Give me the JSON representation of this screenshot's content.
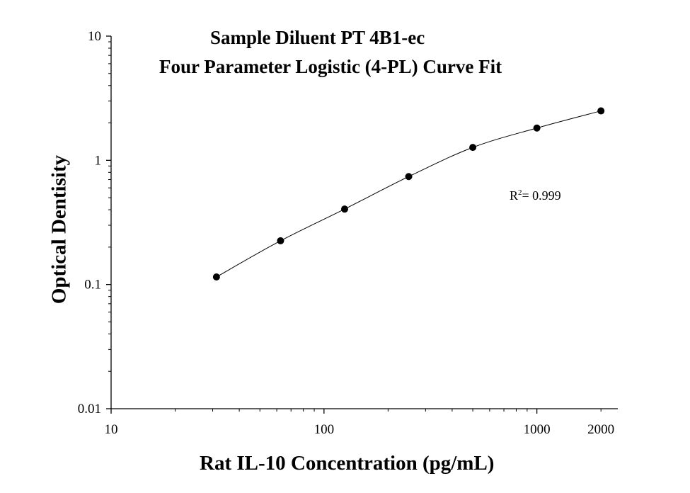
{
  "chart_data": {
    "type": "scatter",
    "title": "Sample Diluent PT 4B1-ec",
    "subtitle": "Four Parameter Logistic (4-PL) Curve Fit",
    "xlabel": "Rat IL-10 Concentration (pg/mL)",
    "ylabel": "Optical Dentisity",
    "x_scale": "log",
    "y_scale": "log",
    "xlim": [
      10,
      2400
    ],
    "ylim": [
      0.01,
      10
    ],
    "x_ticks": [
      "10",
      "100",
      "1000",
      "2000"
    ],
    "y_ticks": [
      "0.01",
      "0.1",
      "1",
      "10"
    ],
    "grid": false,
    "series": [
      {
        "x": [
          31.25,
          62.5,
          125,
          250,
          500,
          1000,
          2000
        ],
        "y": [
          0.115,
          0.225,
          0.405,
          0.74,
          1.27,
          1.82,
          2.5
        ]
      }
    ],
    "annotation": {
      "r2_prefix": "R",
      "r2_sup": "2",
      "r2_value": "= 0.999"
    }
  }
}
